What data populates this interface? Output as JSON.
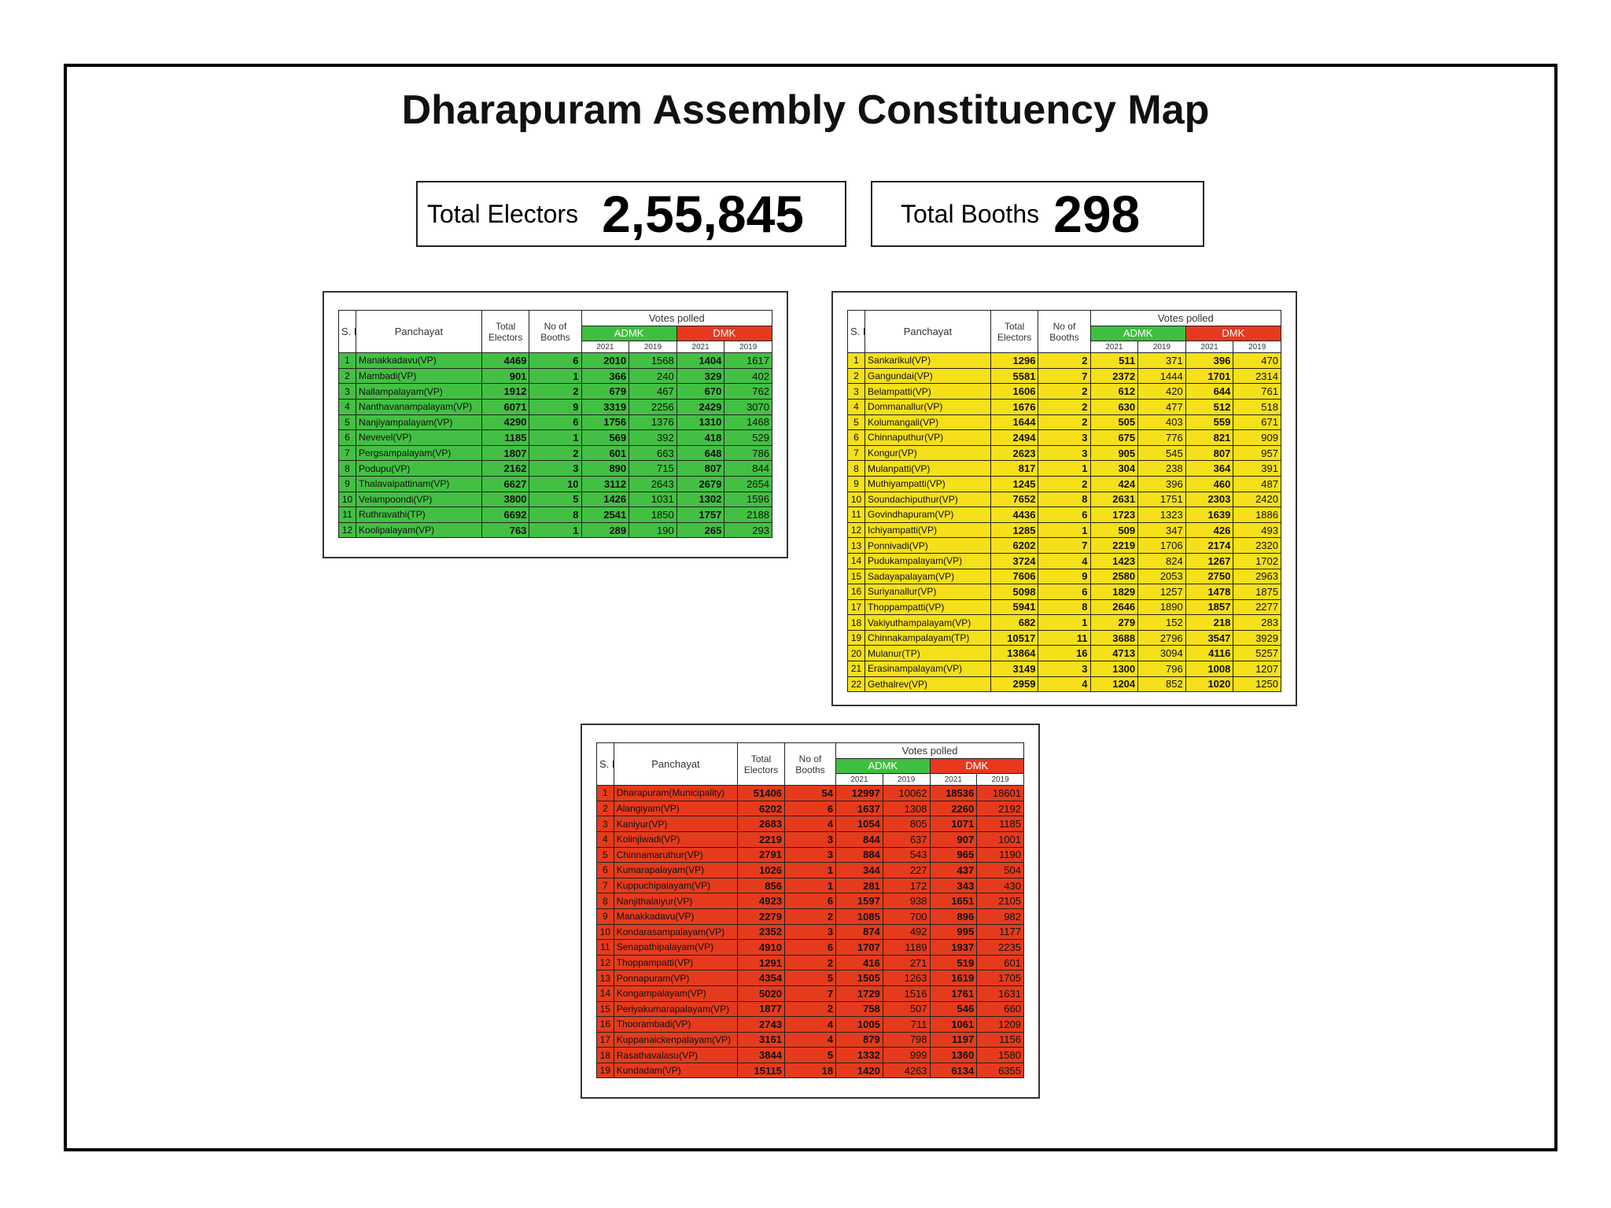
{
  "header": {
    "title": "Dharapuram Assembly Constituency Map"
  },
  "summary": [
    {
      "label": "Total Electors",
      "value": "2,55,845"
    },
    {
      "label": "Total Booths",
      "value": 298
    }
  ],
  "columns": {
    "sno": "S. No",
    "panchayat": "Panchayat",
    "electors": "Total Electors",
    "booths": "No of Booths",
    "votes": "Votes polled",
    "parties": [
      "ADMK",
      "DMK"
    ],
    "years": [
      "2021",
      "2019",
      "2021",
      "2019"
    ]
  },
  "tables": [
    {
      "rows": [
        [
          1,
          "Manakkadavu(VP)",
          4469,
          6,
          2010,
          1568,
          1404,
          1617
        ],
        [
          2,
          "Mambadi(VP)",
          901,
          1,
          366,
          240,
          329,
          402
        ],
        [
          3,
          "Nallampalayam(VP)",
          1912,
          2,
          679,
          467,
          670,
          762
        ],
        [
          4,
          "Nanthavanampalayam(VP)",
          6071,
          9,
          3319,
          2256,
          2429,
          3070
        ],
        [
          5,
          "Nanjiyampalayam(VP)",
          4290,
          6,
          1756,
          1376,
          1310,
          1468
        ],
        [
          6,
          "Nevevel(VP)",
          1185,
          1,
          569,
          392,
          418,
          529
        ],
        [
          7,
          "Pergsampalayam(VP)",
          1807,
          2,
          601,
          663,
          648,
          786
        ],
        [
          8,
          "Podupu(VP)",
          2162,
          3,
          890,
          715,
          807,
          844
        ],
        [
          9,
          "Thalavaipattinam(VP)",
          6627,
          10,
          3112,
          2643,
          2679,
          2654
        ],
        [
          10,
          "Velampoondi(VP)",
          3800,
          5,
          1426,
          1031,
          1302,
          1596
        ],
        [
          11,
          "Ruthravathi(TP)",
          6692,
          8,
          2541,
          1850,
          1757,
          2188
        ],
        [
          12,
          "Koolipalayam(VP)",
          763,
          1,
          289,
          190,
          265,
          293
        ]
      ]
    },
    {
      "rows": [
        [
          1,
          "Sankarikul(VP)",
          1296,
          2,
          511,
          371,
          396,
          470
        ],
        [
          2,
          "Gangundai(VP)",
          5581,
          7,
          2372,
          1444,
          1701,
          2314
        ],
        [
          3,
          "Belampatti(VP)",
          1606,
          2,
          612,
          420,
          644,
          761
        ],
        [
          4,
          "Dommanallur(VP)",
          1676,
          2,
          630,
          477,
          512,
          518
        ],
        [
          5,
          "Kolumangali(VP)",
          1644,
          2,
          505,
          403,
          559,
          671
        ],
        [
          6,
          "Chinnaputhur(VP)",
          2494,
          3,
          675,
          776,
          821,
          909
        ],
        [
          7,
          "Kongur(VP)",
          2623,
          3,
          905,
          545,
          807,
          957
        ],
        [
          8,
          "Mulanpatti(VP)",
          817,
          1,
          304,
          238,
          364,
          391
        ],
        [
          9,
          "Muthiyampatti(VP)",
          1245,
          2,
          424,
          396,
          460,
          487
        ],
        [
          10,
          "Soundachiputhur(VP)",
          7652,
          8,
          2631,
          1751,
          2303,
          2420
        ],
        [
          11,
          "Govindhapuram(VP)",
          4436,
          6,
          1723,
          1323,
          1639,
          1886
        ],
        [
          12,
          "Ichiyampatti(VP)",
          1285,
          1,
          509,
          347,
          426,
          493
        ],
        [
          13,
          "Ponnivadi(VP)",
          6202,
          7,
          2219,
          1706,
          2174,
          2320
        ],
        [
          14,
          "Pudukampalayam(VP)",
          3724,
          4,
          1423,
          824,
          1267,
          1702
        ],
        [
          15,
          "Sadayapalayam(VP)",
          7606,
          9,
          2580,
          2053,
          2750,
          2963
        ],
        [
          16,
          "Suriyanallur(VP)",
          5098,
          6,
          1829,
          1257,
          1478,
          1875
        ],
        [
          17,
          "Thoppampatti(VP)",
          5941,
          8,
          2646,
          1890,
          1857,
          2277
        ],
        [
          18,
          "Vakiyuthampalayam(VP)",
          682,
          1,
          279,
          152,
          218,
          283
        ],
        [
          19,
          "Chinnakampalayam(TP)",
          10517,
          11,
          3688,
          2796,
          3547,
          3929
        ],
        [
          20,
          "Mulanur(TP)",
          13864,
          16,
          4713,
          3094,
          4116,
          5257
        ],
        [
          21,
          "Erasinampalayam(VP)",
          3149,
          3,
          1300,
          796,
          1008,
          1207
        ],
        [
          22,
          "Gethalrev(VP)",
          2959,
          4,
          1204,
          852,
          1020,
          1250
        ]
      ]
    },
    {
      "rows": [
        [
          1,
          "Dharapuram(Municipality)",
          51406,
          54,
          12997,
          10062,
          18536,
          18601
        ],
        [
          2,
          "Alangiyam(VP)",
          6202,
          6,
          1637,
          1308,
          2260,
          2192
        ],
        [
          3,
          "Kaniyur(VP)",
          2683,
          4,
          1054,
          805,
          1071,
          1185
        ],
        [
          4,
          "Kolinjiwadi(VP)",
          2219,
          3,
          844,
          637,
          907,
          1001
        ],
        [
          5,
          "Chinnamaruthur(VP)",
          2791,
          3,
          884,
          543,
          965,
          1190
        ],
        [
          6,
          "Kumarapalayam(VP)",
          1026,
          1,
          344,
          227,
          437,
          504
        ],
        [
          7,
          "Kuppuchipalayam(VP)",
          856,
          1,
          281,
          172,
          343,
          430
        ],
        [
          8,
          "Nanjithalaiyur(VP)",
          4923,
          6,
          1597,
          938,
          1651,
          2105
        ],
        [
          9,
          "Manakkadavu(VP)",
          2279,
          2,
          1085,
          700,
          896,
          982
        ],
        [
          10,
          "Kondarasampalayam(VP)",
          2352,
          3,
          874,
          492,
          995,
          1177
        ],
        [
          11,
          "Senapathipalayam(VP)",
          4910,
          6,
          1707,
          1189,
          1937,
          2235
        ],
        [
          12,
          "Thoppampatti(VP)",
          1291,
          2,
          416,
          271,
          519,
          601
        ],
        [
          13,
          "Ponnapuram(VP)",
          4354,
          5,
          1505,
          1263,
          1619,
          1705
        ],
        [
          14,
          "Kongampalayam(VP)",
          5020,
          7,
          1729,
          1516,
          1761,
          1631
        ],
        [
          15,
          "Periyakumarapalayam(VP)",
          1877,
          2,
          758,
          507,
          546,
          660
        ],
        [
          16,
          "Thoorambadi(VP)",
          2743,
          4,
          1005,
          711,
          1061,
          1209
        ],
        [
          17,
          "Kuppanaickenpalayam(VP)",
          3161,
          4,
          879,
          798,
          1197,
          1156
        ],
        [
          18,
          "Rasathavalasu(VP)",
          3844,
          5,
          1332,
          999,
          1360,
          1580
        ],
        [
          19,
          "Kundadam(VP)",
          15115,
          18,
          1420,
          4263,
          6134,
          6355
        ]
      ]
    }
  ]
}
